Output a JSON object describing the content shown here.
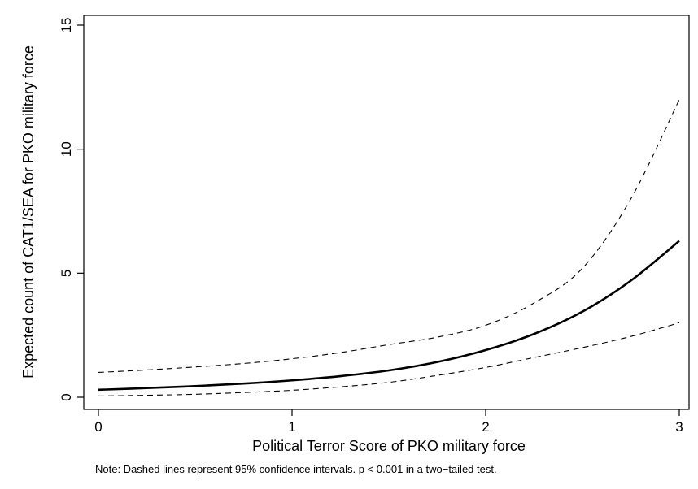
{
  "chart_data": {
    "type": "line",
    "title": "",
    "xlabel": "Political Terror Score of PKO military force",
    "ylabel": "Expected count of CAT1/SEA for PKO military force",
    "note": "Note: Dashed lines represent 95% confidence intervals. p < 0.001 in a two−tailed test.",
    "xlim": [
      0,
      3
    ],
    "ylim": [
      0,
      15
    ],
    "xticks": [
      "0",
      "1",
      "2",
      "3"
    ],
    "yticks": [
      "0",
      "5",
      "10",
      "15"
    ],
    "grid": false,
    "x": [
      0,
      0.25,
      0.5,
      0.75,
      1.0,
      1.25,
      1.5,
      1.75,
      2.0,
      2.25,
      2.5,
      2.75,
      3.0
    ],
    "series": [
      {
        "style": "solid",
        "values": [
          0.3,
          0.37,
          0.45,
          0.55,
          0.68,
          0.85,
          1.08,
          1.42,
          1.9,
          2.55,
          3.45,
          4.7,
          6.3
        ]
      },
      {
        "style": "dashed",
        "values": [
          1.0,
          1.1,
          1.22,
          1.36,
          1.55,
          1.8,
          2.12,
          2.42,
          2.9,
          3.8,
          5.2,
          8.0,
          12.0
        ]
      },
      {
        "style": "dashed",
        "values": [
          0.05,
          0.08,
          0.12,
          0.19,
          0.28,
          0.42,
          0.6,
          0.88,
          1.2,
          1.6,
          2.0,
          2.45,
          3.0
        ]
      }
    ],
    "colors": {
      "line": "#000000",
      "axis": "#000000",
      "background": "#ffffff"
    }
  }
}
